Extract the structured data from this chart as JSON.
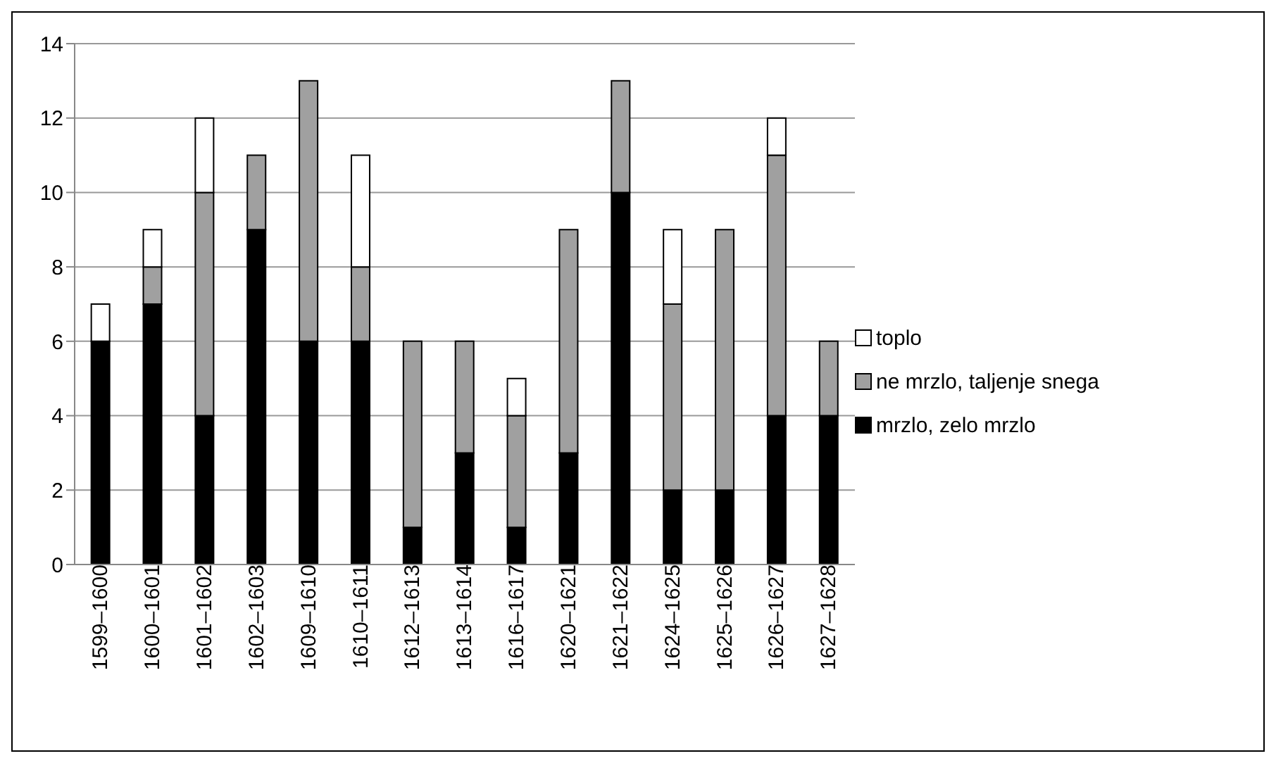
{
  "chart_data": {
    "type": "bar",
    "stacked": true,
    "categories": [
      "1599–1600",
      "1600–1601",
      "1601–1602",
      "1602–1603",
      "1609–1610",
      "1610–1611",
      "1612–1613",
      "1613–1614",
      "1616–1617",
      "1620–1621",
      "1621–1622",
      "1624–1625",
      "1625–1626",
      "1626–1627",
      "1627–1628"
    ],
    "series": [
      {
        "name": "mrzlo, zelo mrzlo",
        "color": "#000000",
        "values": [
          6,
          7,
          4,
          9,
          6,
          6,
          1,
          3,
          1,
          3,
          10,
          2,
          2,
          4,
          4
        ]
      },
      {
        "name": "ne mrzlo, taljenje snega",
        "color": "#a0a0a0",
        "values": [
          0,
          1,
          6,
          2,
          7,
          2,
          5,
          3,
          3,
          6,
          3,
          5,
          7,
          7,
          2
        ]
      },
      {
        "name": "toplo",
        "color": "#ffffff",
        "values": [
          1,
          1,
          2,
          0,
          0,
          3,
          0,
          0,
          1,
          0,
          0,
          2,
          0,
          1,
          0
        ]
      }
    ],
    "ylim": [
      0,
      14
    ],
    "yticks": [
      0,
      2,
      4,
      6,
      8,
      10,
      12,
      14
    ],
    "grid": "y",
    "legend": "right"
  }
}
